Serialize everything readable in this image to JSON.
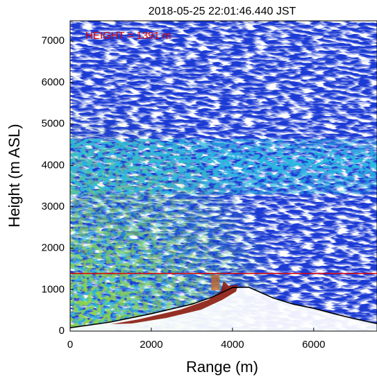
{
  "chart_data": {
    "type": "line",
    "title": "2018-05-25 22:01:46.440 JST",
    "x_label": "Range (m)",
    "y_label": "Height (m ASL)",
    "xlim": [
      0,
      7560
    ],
    "ylim": [
      0,
      7490
    ],
    "xticks": [
      0,
      2000,
      4000,
      6000
    ],
    "yticks": [
      0,
      1000,
      2000,
      3000,
      4000,
      5000,
      6000,
      7000
    ],
    "series": [
      {
        "color": "#000000",
        "x": [
          0,
          1000,
          2000,
          3000,
          3500,
          4000,
          4400,
          5000,
          5500,
          6000,
          6500,
          7000,
          7560
        ],
        "values": [
          80,
          220,
          420,
          650,
          820,
          1050,
          1060,
          800,
          650,
          550,
          420,
          300,
          180
        ]
      }
    ],
    "reference_line": {
      "value": 1391,
      "color": "#e00000",
      "label": "HEIGHT = 1391 m"
    }
  }
}
